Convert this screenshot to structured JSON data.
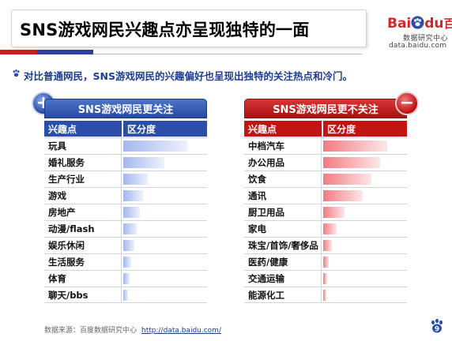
{
  "title": "SNS游戏网民兴趣点亦呈现独特的一面",
  "logo": {
    "brand_bai": "Bai",
    "brand_du": "du",
    "brand_cn": "百度",
    "sub_cn": "数据研究中心",
    "sub_url": "data.baidu.com"
  },
  "subtitle": "对比普通网民，SNS游戏网民的兴趣偏好也呈现出独特的关注热点和冷门。",
  "left_panel": {
    "header": "SNS游戏网民更关注",
    "col_interest": "兴趣点",
    "col_degree": "区分度",
    "color": "#2a4ea9",
    "rows": [
      {
        "name": "玩具",
        "value": 0.88
      },
      {
        "name": "婚礼服务",
        "value": 0.57
      },
      {
        "name": "生产行业",
        "value": 0.34
      },
      {
        "name": "游戏",
        "value": 0.27
      },
      {
        "name": "房地产",
        "value": 0.23
      },
      {
        "name": "动漫/flash",
        "value": 0.19
      },
      {
        "name": "娱乐休闲",
        "value": 0.15
      },
      {
        "name": "生活服务",
        "value": 0.11
      },
      {
        "name": "体育",
        "value": 0.09
      },
      {
        "name": "聊天/bbs",
        "value": 0.07
      }
    ]
  },
  "right_panel": {
    "header": "SNS游戏网民更不关注",
    "col_interest": "兴趣点",
    "col_degree": "区分度",
    "color": "#c31414",
    "rows": [
      {
        "name": "中档汽车",
        "value": 0.88
      },
      {
        "name": "办公用品",
        "value": 0.78
      },
      {
        "name": "饮食",
        "value": 0.66
      },
      {
        "name": "通讯",
        "value": 0.54
      },
      {
        "name": "厨卫用品",
        "value": 0.29
      },
      {
        "name": "家电",
        "value": 0.19
      },
      {
        "name": "珠宝/首饰/奢侈品",
        "value": 0.12
      },
      {
        "name": "医药/健康",
        "value": 0.08
      },
      {
        "name": "交通运输",
        "value": 0.05
      },
      {
        "name": "能源化工",
        "value": 0.04
      }
    ]
  },
  "footer": {
    "source": "数据来源：百度数据研究中心",
    "url": "http://data.baidu.com/"
  },
  "page_number": "9"
}
